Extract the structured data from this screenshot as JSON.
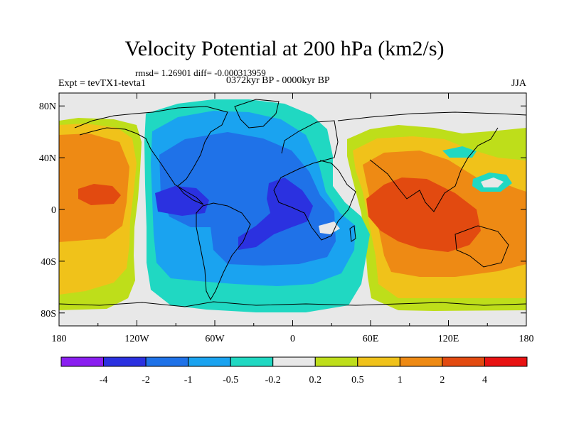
{
  "chart_data": {
    "type": "heatmap",
    "title": "Velocity Potential at 200 hPa (km2/s)",
    "stats_label": "rmsd= 1.26901 diff= -0.000313959",
    "rmsd": 1.26901,
    "diff": -0.000313959,
    "experiment_label": "Expt = tevTX1-tevta1",
    "period_label": "0372kyr BP - 0000kyr BP",
    "season_label": "JJA",
    "x_axis": {
      "range": [
        -180,
        180
      ],
      "ticks": [
        -180,
        -120,
        -60,
        0,
        60,
        120,
        180
      ],
      "tick_labels": [
        "180",
        "120W",
        "60W",
        "0",
        "60E",
        "120E",
        "180"
      ]
    },
    "y_axis": {
      "range": [
        -90,
        90
      ],
      "ticks": [
        80,
        40,
        0,
        -40,
        -80
      ],
      "tick_labels": [
        "80N",
        "40N",
        "0",
        "40S",
        "80S"
      ]
    },
    "colorbar": {
      "levels": [
        "-4",
        "-2",
        "-1",
        "-0.5",
        "-0.2",
        "0.2",
        "0.5",
        "1",
        "2",
        "4"
      ],
      "colors": [
        "#8a1ff0",
        "#2b31e0",
        "#1f72e8",
        "#1aa3f0",
        "#20d8c2",
        "#e8e8e8",
        "#bede1a",
        "#f0c21a",
        "#ee8a14",
        "#e24a10",
        "#e81212"
      ]
    },
    "fields": [
      {
        "name": "eastern-hemisphere-positive-anomaly",
        "value_range": "0.2 to 4",
        "peak_level": "2 to 4",
        "peak_location": "Indonesia / Indian Ocean"
      },
      {
        "name": "eastern-pacific-positive-anomaly",
        "value_range": "0.2 to 4",
        "peak_level": "1 to 2",
        "peak_location": "central-eastern Pacific near 150W"
      },
      {
        "name": "atlantic-americas-negative-anomaly",
        "value_range": "-4 to -0.2",
        "peak_level": "-4 to -2",
        "peak_location": "tropical Atlantic and Central America"
      }
    ]
  }
}
